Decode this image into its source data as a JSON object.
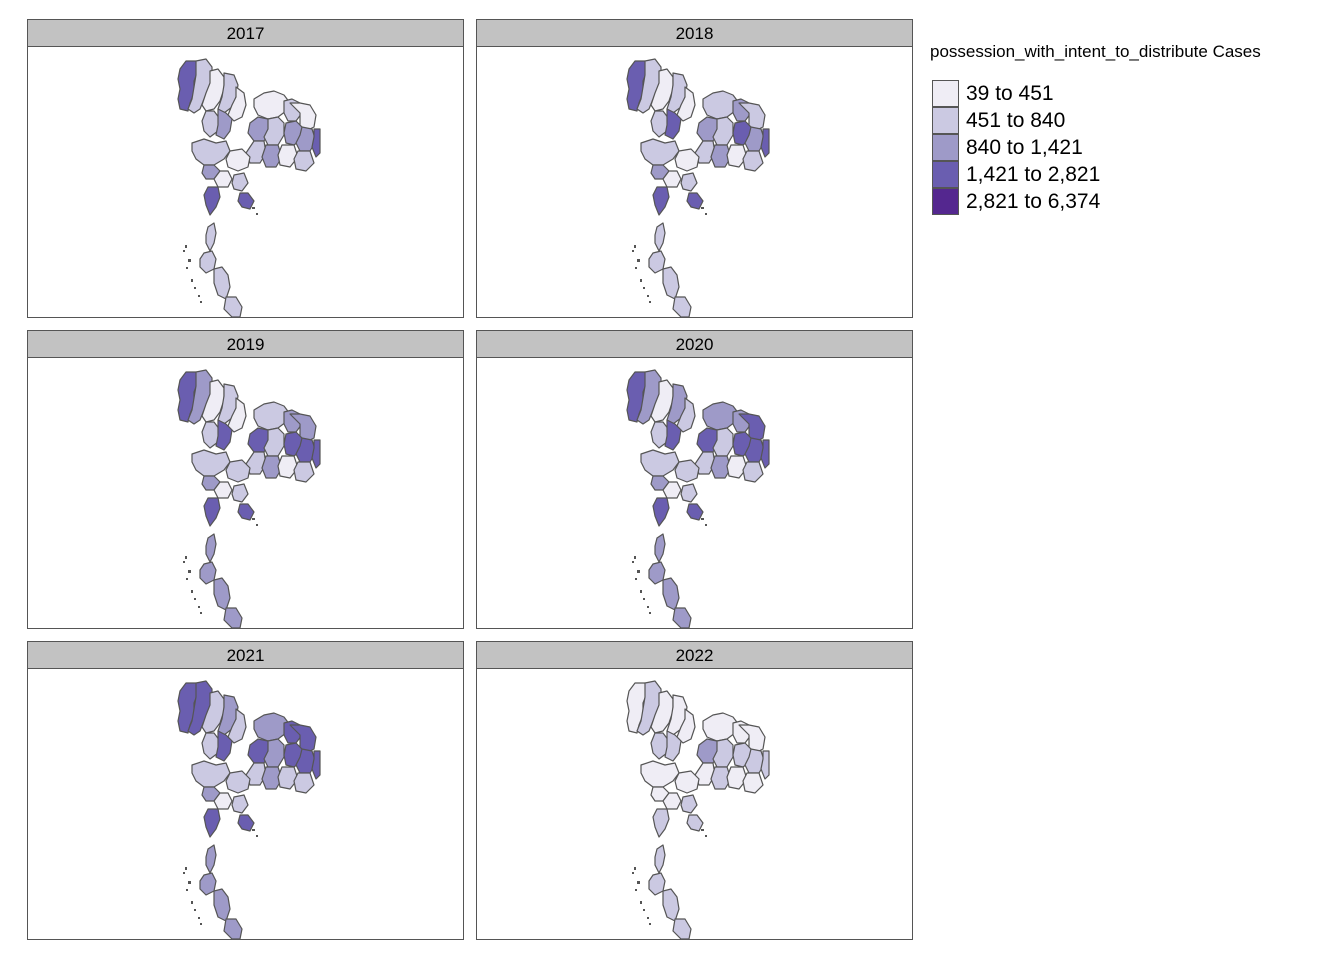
{
  "legend": {
    "title": "possession_with_intent_to_distribute Cases",
    "classes": [
      {
        "label": "39 to 451",
        "color": "#efedf5"
      },
      {
        "label": "451 to 840",
        "color": "#cbc9e2"
      },
      {
        "label": "840 to 1,421",
        "color": "#9e9ac8"
      },
      {
        "label": "1,421 to 2,821",
        "color": "#6a5eb0"
      },
      {
        "label": "2,821 to 6,374",
        "color": "#54278f"
      }
    ]
  },
  "panels": [
    {
      "year": "2017",
      "classes": [
        3,
        1,
        0,
        1,
        0,
        1,
        2,
        0,
        2,
        1,
        1,
        2,
        0,
        2,
        1,
        2,
        0,
        1,
        3,
        1,
        2,
        0,
        0,
        1,
        3,
        3,
        1
      ]
    },
    {
      "year": "2018",
      "classes": [
        3,
        1,
        0,
        1,
        0,
        1,
        3,
        1,
        2,
        1,
        2,
        3,
        1,
        2,
        1,
        2,
        0,
        1,
        3,
        1,
        2,
        0,
        0,
        1,
        3,
        3,
        1
      ]
    },
    {
      "year": "2019",
      "classes": [
        3,
        2,
        0,
        1,
        0,
        1,
        3,
        1,
        3,
        1,
        2,
        3,
        2,
        3,
        1,
        2,
        0,
        1,
        3,
        1,
        2,
        1,
        0,
        1,
        3,
        3,
        2
      ]
    },
    {
      "year": "2020",
      "classes": [
        3,
        2,
        0,
        2,
        1,
        1,
        3,
        2,
        3,
        1,
        2,
        3,
        3,
        3,
        1,
        2,
        0,
        1,
        3,
        1,
        2,
        1,
        0,
        1,
        3,
        3,
        2
      ]
    },
    {
      "year": "2021",
      "classes": [
        3,
        3,
        1,
        2,
        1,
        1,
        3,
        2,
        3,
        2,
        3,
        3,
        3,
        3,
        1,
        2,
        1,
        1,
        3,
        1,
        2,
        1,
        0,
        1,
        3,
        3,
        2
      ]
    },
    {
      "year": "2022",
      "classes": [
        0,
        1,
        0,
        0,
        0,
        1,
        1,
        0,
        2,
        1,
        0,
        1,
        0,
        1,
        0,
        1,
        0,
        0,
        1,
        0,
        0,
        0,
        0,
        1,
        1,
        1,
        1
      ]
    }
  ]
}
